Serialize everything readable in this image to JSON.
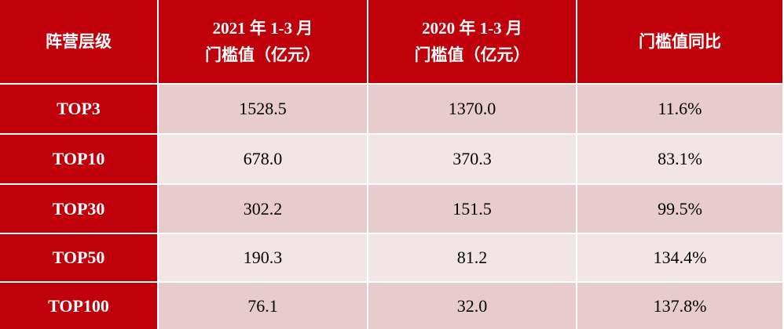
{
  "table": {
    "header": [
      [
        "阵营层级"
      ],
      [
        "2021 年 1-3 月",
        "门槛值（亿元）"
      ],
      [
        "2020 年 1-3 月",
        "门槛值（亿元）"
      ],
      [
        "门槛值同比"
      ]
    ],
    "rows": [
      [
        "TOP3",
        "1528.5",
        "1370.0",
        "11.6%"
      ],
      [
        "TOP10",
        "678.0",
        "370.3",
        "83.1%"
      ],
      [
        "TOP30",
        "302.2",
        "151.5",
        "99.5%"
      ],
      [
        "TOP50",
        "190.3",
        "81.2",
        "134.4%"
      ],
      [
        "TOP100",
        "76.1",
        "32.0",
        "137.8%"
      ]
    ]
  }
}
